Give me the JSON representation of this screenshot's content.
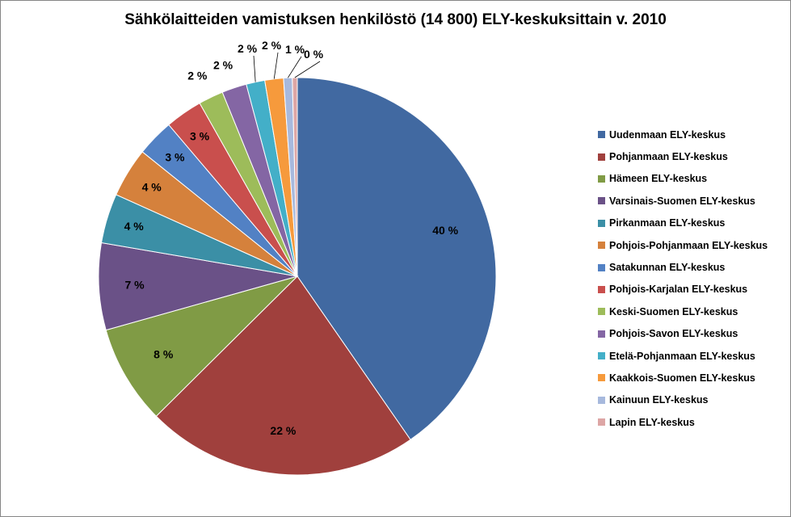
{
  "chart_data": {
    "type": "pie",
    "title": "Sähkölaitteiden vamistuksen henkilöstö (14 800) ELY-keskuksittain v. 2010",
    "legend_position": "right",
    "slices": [
      {
        "name": "Uudenmaan ELY-keskus",
        "value": 40,
        "label": "40 %",
        "color": "#4169A1"
      },
      {
        "name": "Pohjanmaan ELY-keskus",
        "value": 22,
        "label": "22 %",
        "color": "#A0403D"
      },
      {
        "name": "Hämeen ELY-keskus",
        "value": 8,
        "label": "8 %",
        "color": "#809B45"
      },
      {
        "name": "Varsinais-Suomen ELY-keskus",
        "value": 7,
        "label": "7 %",
        "color": "#6A5187"
      },
      {
        "name": "Pirkanmaan ELY-keskus",
        "value": 4,
        "label": "4 %",
        "color": "#3B8FA6"
      },
      {
        "name": "Pohjois-Pohjanmaan ELY-keskus",
        "value": 4,
        "label": "4 %",
        "color": "#D5813C"
      },
      {
        "name": "Satakunnan ELY-keskus",
        "value": 3,
        "label": "3 %",
        "color": "#5281C4"
      },
      {
        "name": "Pohjois-Karjalan ELY-keskus",
        "value": 3,
        "label": "3 %",
        "color": "#C94F4D"
      },
      {
        "name": "Keski-Suomen ELY-keskus",
        "value": 2,
        "label": "2 %",
        "color": "#9DBC5A"
      },
      {
        "name": "Pohjois-Savon ELY-keskus",
        "value": 2,
        "label": "2 %",
        "color": "#8466A4"
      },
      {
        "name": "Etelä-Pohjanmaan ELY-keskus",
        "value": 1.5,
        "label": "2 %",
        "color": "#43AFC8"
      },
      {
        "name": "Kaakkois-Suomen ELY-keskus",
        "value": 1.5,
        "label": "2 %",
        "color": "#F69A3C"
      },
      {
        "name": "Kainuun ELY-keskus",
        "value": 0.7,
        "label": "1 %",
        "color": "#A7B9DD"
      },
      {
        "name": "Lapin ELY-keskus",
        "value": 0.4,
        "label": "0 %",
        "color": "#DDA6A5"
      }
    ]
  }
}
